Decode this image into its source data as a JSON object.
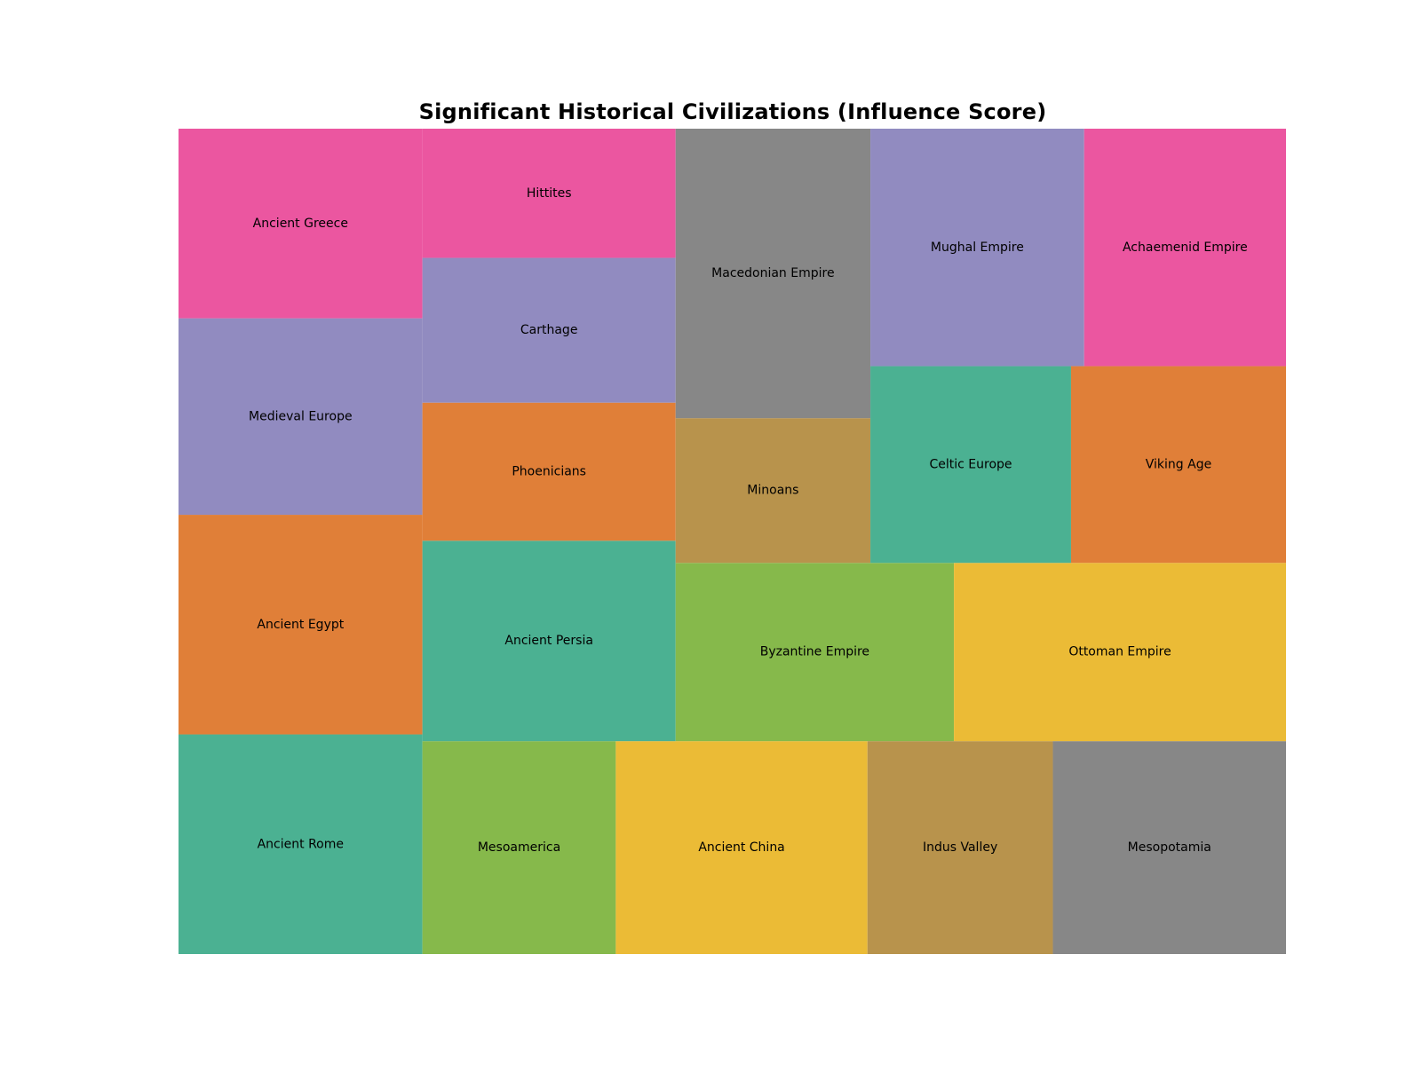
{
  "chart_data": {
    "type": "treemap",
    "title": "Significant Historical Civilizations (Influence Score)",
    "items": [
      {
        "label": "Ancient Rome",
        "value": 95,
        "color": "#4bb192"
      },
      {
        "label": "Ancient Egypt",
        "value": 95,
        "color": "#e07f38"
      },
      {
        "label": "Medieval Europe",
        "value": 85,
        "color": "#918bc0"
      },
      {
        "label": "Ancient Greece",
        "value": 82,
        "color": "#eb56a0"
      },
      {
        "label": "Mesoamerica",
        "value": 73,
        "color": "#86b94b"
      },
      {
        "label": "Ancient China",
        "value": 95,
        "color": "#ebbb36"
      },
      {
        "label": "Indus Valley",
        "value": 70,
        "color": "#b8934c"
      },
      {
        "label": "Mesopotamia",
        "value": 88,
        "color": "#878787"
      },
      {
        "label": "Ancient Persia",
        "value": 90,
        "color": "#4bb192"
      },
      {
        "label": "Phoenicians",
        "value": 62,
        "color": "#e07f38"
      },
      {
        "label": "Carthage",
        "value": 65,
        "color": "#918bc0"
      },
      {
        "label": "Hittites",
        "value": 58,
        "color": "#eb56a0"
      },
      {
        "label": "Byzantine Empire",
        "value": 88,
        "color": "#86b94b"
      },
      {
        "label": "Ottoman Empire",
        "value": 105,
        "color": "#ebbb36"
      },
      {
        "label": "Minoans",
        "value": 50,
        "color": "#b8934c"
      },
      {
        "label": "Macedonian Empire",
        "value": 100,
        "color": "#878787"
      },
      {
        "label": "Celtic Europe",
        "value": 70,
        "color": "#4bb192"
      },
      {
        "label": "Viking Age",
        "value": 75,
        "color": "#e07f38"
      },
      {
        "label": "Mughal Empire",
        "value": 90,
        "color": "#918bc0"
      },
      {
        "label": "Achaemenid Empire",
        "value": 85,
        "color": "#eb56a0"
      }
    ]
  }
}
